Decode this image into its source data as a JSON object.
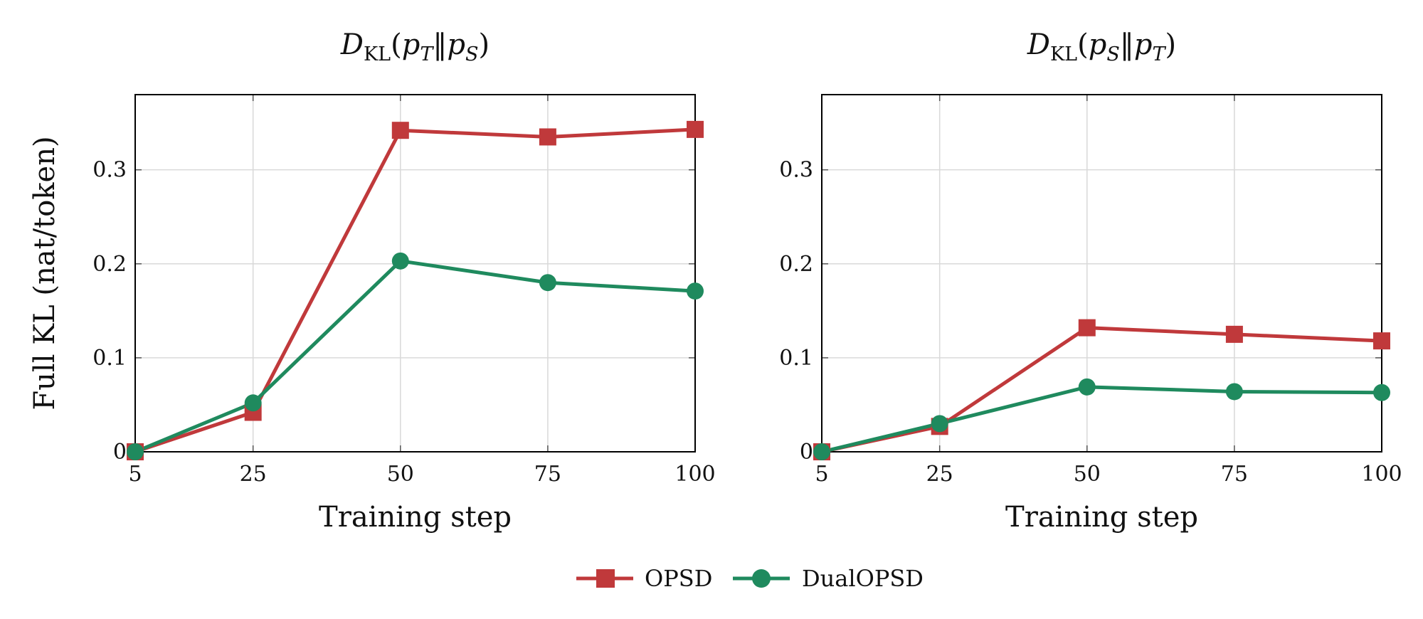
{
  "colors": {
    "opsd": "#c0393b",
    "dualopsd": "#1f8a5e",
    "grid": "#d9d9d9",
    "axis": "#000000"
  },
  "legend": {
    "placement": "bottom-center"
  },
  "chart_data": [
    {
      "type": "line",
      "title": "D_KL(p_T‖p_S)",
      "title_parts": {
        "d": "D",
        "sub": "KL",
        "open": "(",
        "p1": "p",
        "p1sub": "T",
        "sep": "‖",
        "p2": "p",
        "p2sub": "S",
        "close": ")"
      },
      "xlabel": "Training step",
      "ylabel": "Full KL (nat/token)",
      "x": [
        5,
        25,
        50,
        75,
        100
      ],
      "x_ticks": [
        "5",
        "25",
        "50",
        "75",
        "100"
      ],
      "y_ticks": [
        0,
        0.1,
        0.2,
        0.3
      ],
      "y_tick_labels": [
        "0",
        "0.1",
        "0.2",
        "0.3"
      ],
      "xlim": [
        5,
        100
      ],
      "ylim": [
        0,
        0.38
      ],
      "grid": true,
      "series": [
        {
          "name": "OPSD",
          "color": "#c0393b",
          "marker": "square",
          "values": [
            0,
            0.042,
            0.342,
            0.335,
            0.343
          ]
        },
        {
          "name": "DualOPSD",
          "color": "#1f8a5e",
          "marker": "circle",
          "values": [
            0,
            0.052,
            0.203,
            0.18,
            0.171
          ]
        }
      ]
    },
    {
      "type": "line",
      "title": "D_KL(p_S‖p_T)",
      "title_parts": {
        "d": "D",
        "sub": "KL",
        "open": "(",
        "p1": "p",
        "p1sub": "S",
        "sep": "‖",
        "p2": "p",
        "p2sub": "T",
        "close": ")"
      },
      "xlabel": "Training step",
      "ylabel": "",
      "x": [
        5,
        25,
        50,
        75,
        100
      ],
      "x_ticks": [
        "5",
        "25",
        "50",
        "75",
        "100"
      ],
      "y_ticks": [
        0,
        0.1,
        0.2,
        0.3
      ],
      "y_tick_labels": [
        "0",
        "0.1",
        "0.2",
        "0.3"
      ],
      "xlim": [
        5,
        100
      ],
      "ylim": [
        0,
        0.38
      ],
      "grid": true,
      "series": [
        {
          "name": "OPSD",
          "color": "#c0393b",
          "marker": "square",
          "values": [
            0,
            0.027,
            0.132,
            0.125,
            0.118
          ]
        },
        {
          "name": "DualOPSD",
          "color": "#1f8a5e",
          "marker": "circle",
          "values": [
            0,
            0.03,
            0.069,
            0.064,
            0.063
          ]
        }
      ]
    }
  ]
}
